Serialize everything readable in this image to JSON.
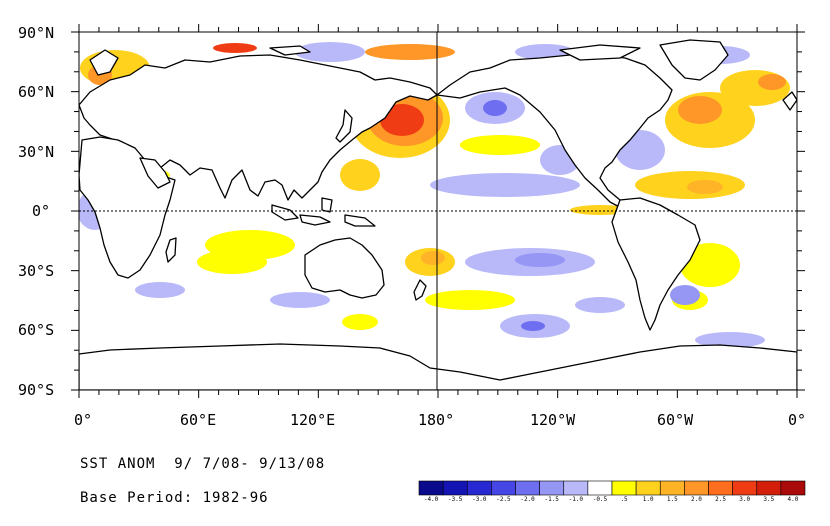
{
  "map": {
    "lat_labels": [
      "90°N",
      "60°N",
      "30°N",
      "0°",
      "30°S",
      "60°S",
      "90°S"
    ],
    "lon_labels": [
      "0°",
      "60°E",
      "120°E",
      "180°",
      "120°W",
      "60°W",
      "0°"
    ],
    "colors": {
      "land": "#ffffff",
      "ocean_neutral": "#ffffff",
      "coast": "#000000",
      "equator_line": "#000000"
    }
  },
  "caption": {
    "title": "SST ANOM  9/ 7/08- 9/13/08",
    "base_period": "Base Period: 1982-96"
  },
  "legend": {
    "labels": [
      "-4.0",
      "-3.5",
      "-3.0",
      "-2.5",
      "-2.0",
      "-1.5",
      "-1.0",
      "-0.5",
      ".5",
      "1.0",
      "1.5",
      "2.0",
      "2.5",
      "3.0",
      "3.5",
      "4.0"
    ],
    "colors": [
      "#0a0a8c",
      "#1414b4",
      "#2828d2",
      "#4646e6",
      "#6e6ef0",
      "#9696f5",
      "#b9b9fa",
      "#ffffff",
      "#ffff00",
      "#ffd21e",
      "#ffb428",
      "#ff9628",
      "#ff6e1e",
      "#f03c14",
      "#d21e0a",
      "#aa0a0a"
    ]
  }
}
